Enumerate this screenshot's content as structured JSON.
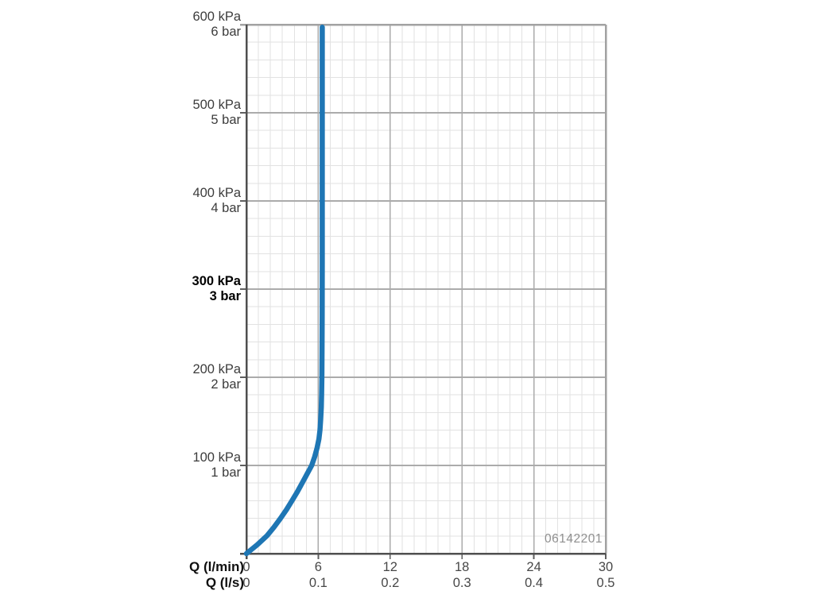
{
  "chart_data": {
    "type": "line",
    "title": "",
    "x_axis": {
      "label_primary": "Q (l/min)",
      "label_secondary": "Q (l/s)",
      "min": 0,
      "max": 30,
      "minor_step": 1,
      "major_step": 6,
      "ticks": [
        {
          "value": 0,
          "lmin": "0",
          "ls": "0"
        },
        {
          "value": 6,
          "lmin": "6",
          "ls": "0.1"
        },
        {
          "value": 12,
          "lmin": "12",
          "ls": "0.2"
        },
        {
          "value": 18,
          "lmin": "18",
          "ls": "0.3"
        },
        {
          "value": 24,
          "lmin": "24",
          "ls": "0.4"
        },
        {
          "value": 30,
          "lmin": "30",
          "ls": "0.5"
        }
      ]
    },
    "y_axis": {
      "unit_primary": "kPa",
      "unit_secondary": "bar",
      "min": 0,
      "max": 600,
      "minor_step": 20,
      "major_step": 100,
      "ticks": [
        {
          "value": 600,
          "kpa": "600 kPa",
          "bar": "6 bar",
          "bold": false
        },
        {
          "value": 500,
          "kpa": "500 kPa",
          "bar": "5 bar",
          "bold": false
        },
        {
          "value": 400,
          "kpa": "400 kPa",
          "bar": "4 bar",
          "bold": false
        },
        {
          "value": 300,
          "kpa": "300 kPa",
          "bar": "3 bar",
          "bold": true
        },
        {
          "value": 200,
          "kpa": "200 kPa",
          "bar": "2 bar",
          "bold": false
        },
        {
          "value": 100,
          "kpa": "100 kPa",
          "bar": "1 bar",
          "bold": false
        }
      ]
    },
    "series": [
      {
        "name": "flow-rate-vs-pressure",
        "color": "#1e76b4",
        "stroke_width": 6.5,
        "points": [
          [
            0,
            0
          ],
          [
            0.9,
            10
          ],
          [
            1.7,
            20
          ],
          [
            2.3,
            30
          ],
          [
            2.85,
            40
          ],
          [
            3.35,
            50
          ],
          [
            3.8,
            60
          ],
          [
            4.25,
            70
          ],
          [
            4.65,
            80
          ],
          [
            5.05,
            90
          ],
          [
            5.45,
            100
          ],
          [
            5.7,
            110
          ],
          [
            5.9,
            120
          ],
          [
            6.05,
            130
          ],
          [
            6.14,
            140
          ],
          [
            6.2,
            152
          ],
          [
            6.25,
            166
          ],
          [
            6.28,
            182
          ],
          [
            6.3,
            200
          ],
          [
            6.315,
            230
          ],
          [
            6.325,
            270
          ],
          [
            6.33,
            330
          ],
          [
            6.335,
            597
          ]
        ]
      }
    ],
    "watermark": "06142201",
    "grid": true,
    "legend": "none",
    "colors": {
      "background": "#ffffff",
      "grid_minor": "#e2e2e2",
      "grid_major": "#ababab",
      "axis": "#4f4f4f",
      "border": "#a2a2a2",
      "tick": "#5f5f5f",
      "tick_label": "#474747",
      "y_label": "#3c3c3c",
      "y_label_bold": "#000000",
      "watermark": "#8f8f8f"
    }
  }
}
